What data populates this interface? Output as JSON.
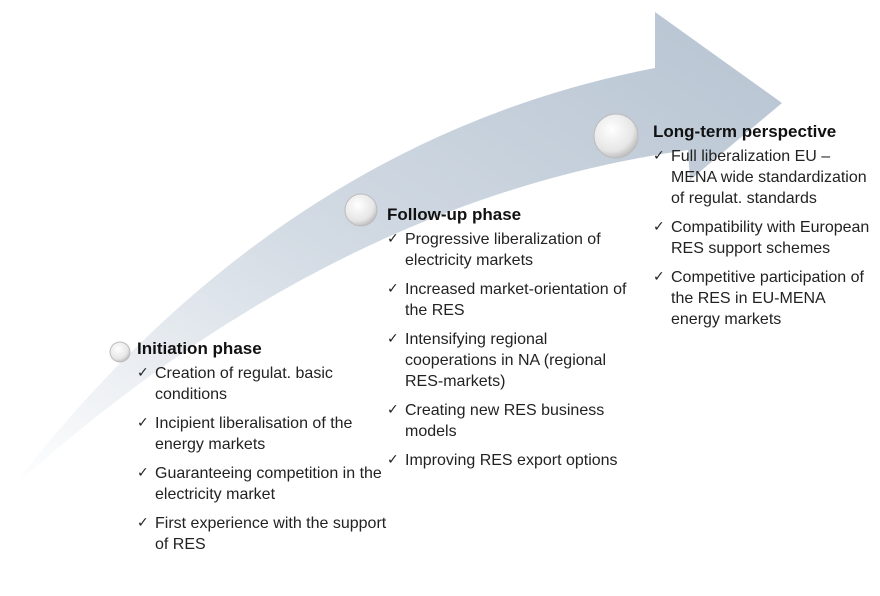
{
  "phases": [
    {
      "title": "Initiation phase",
      "items": [
        "Creation of regulat. basic conditions",
        "Incipient liberalisation of the energy markets",
        "Guaranteeing competition in the electricity market",
        "First experience with the support of RES"
      ]
    },
    {
      "title": "Follow-up phase",
      "items": [
        "Progressive liberalization of electricity markets",
        "Increased market-orientation of the RES",
        "Intensifying regional cooperations in NA (regional RES-markets)",
        "Creating new RES business models",
        "Improving RES export options"
      ]
    },
    {
      "title": "Long-term perspective",
      "items": [
        "Full liberalization EU – MENA wide standardization of regulat. standards",
        "Compatibility with European RES support schemes",
        "Competitive participation of the RES in EU-MENA energy markets"
      ]
    }
  ]
}
